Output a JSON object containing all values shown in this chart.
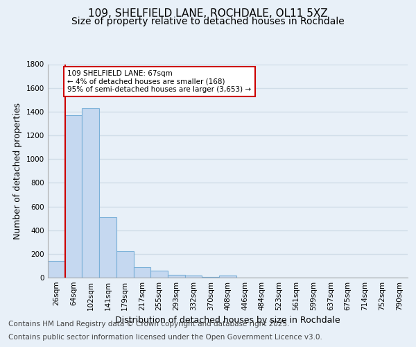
{
  "title": "109, SHELFIELD LANE, ROCHDALE, OL11 5XZ",
  "subtitle": "Size of property relative to detached houses in Rochdale",
  "xlabel": "Distribution of detached houses by size in Rochdale",
  "ylabel": "Number of detached properties",
  "categories": [
    "26sqm",
    "64sqm",
    "102sqm",
    "141sqm",
    "179sqm",
    "217sqm",
    "255sqm",
    "293sqm",
    "332sqm",
    "370sqm",
    "408sqm",
    "446sqm",
    "484sqm",
    "523sqm",
    "561sqm",
    "599sqm",
    "637sqm",
    "675sqm",
    "714sqm",
    "752sqm",
    "790sqm"
  ],
  "values": [
    140,
    1370,
    1430,
    510,
    225,
    90,
    60,
    25,
    15,
    5,
    15,
    0,
    0,
    0,
    0,
    0,
    0,
    0,
    0,
    0,
    0
  ],
  "bar_color": "#c5d8f0",
  "bar_edge_color": "#7ab0d8",
  "red_line_x": 0.5,
  "highlight_color": "#cc0000",
  "annotation_text": "109 SHELFIELD LANE: 67sqm\n← 4% of detached houses are smaller (168)\n95% of semi-detached houses are larger (3,653) →",
  "annotation_box_color": "#ffffff",
  "annotation_box_edge": "#cc0000",
  "ylim": [
    0,
    1800
  ],
  "yticks": [
    0,
    200,
    400,
    600,
    800,
    1000,
    1200,
    1400,
    1600,
    1800
  ],
  "background_color": "#e8f0f8",
  "grid_color": "#d0dde8",
  "footer_line1": "Contains HM Land Registry data © Crown copyright and database right 2025.",
  "footer_line2": "Contains public sector information licensed under the Open Government Licence v3.0.",
  "title_fontsize": 11,
  "subtitle_fontsize": 10,
  "tick_fontsize": 7.5,
  "ylabel_fontsize": 9,
  "xlabel_fontsize": 9,
  "footer_fontsize": 7.5
}
